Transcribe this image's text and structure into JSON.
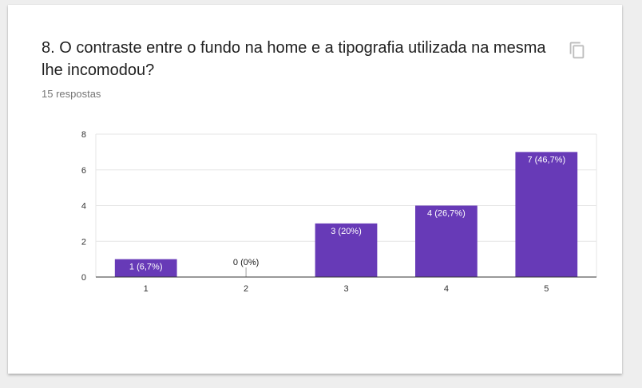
{
  "question": {
    "title": "8. O contraste entre o fundo na home e a tipografia utilizada na mesma lhe incomodou?",
    "responses": "15 respostas",
    "copy_icon": "copy-icon"
  },
  "chart_data": {
    "type": "bar",
    "categories": [
      "1",
      "2",
      "3",
      "4",
      "5"
    ],
    "values": [
      1,
      0,
      3,
      4,
      7
    ],
    "data_labels": [
      "1 (6,7%)",
      "0 (0%)",
      "3 (20%)",
      "4 (26,7%)",
      "7 (46,7%)"
    ],
    "ylim": [
      0,
      8
    ],
    "yticks": [
      "0",
      "2",
      "4",
      "6",
      "8"
    ],
    "grid": true,
    "color": "#673ab7"
  }
}
